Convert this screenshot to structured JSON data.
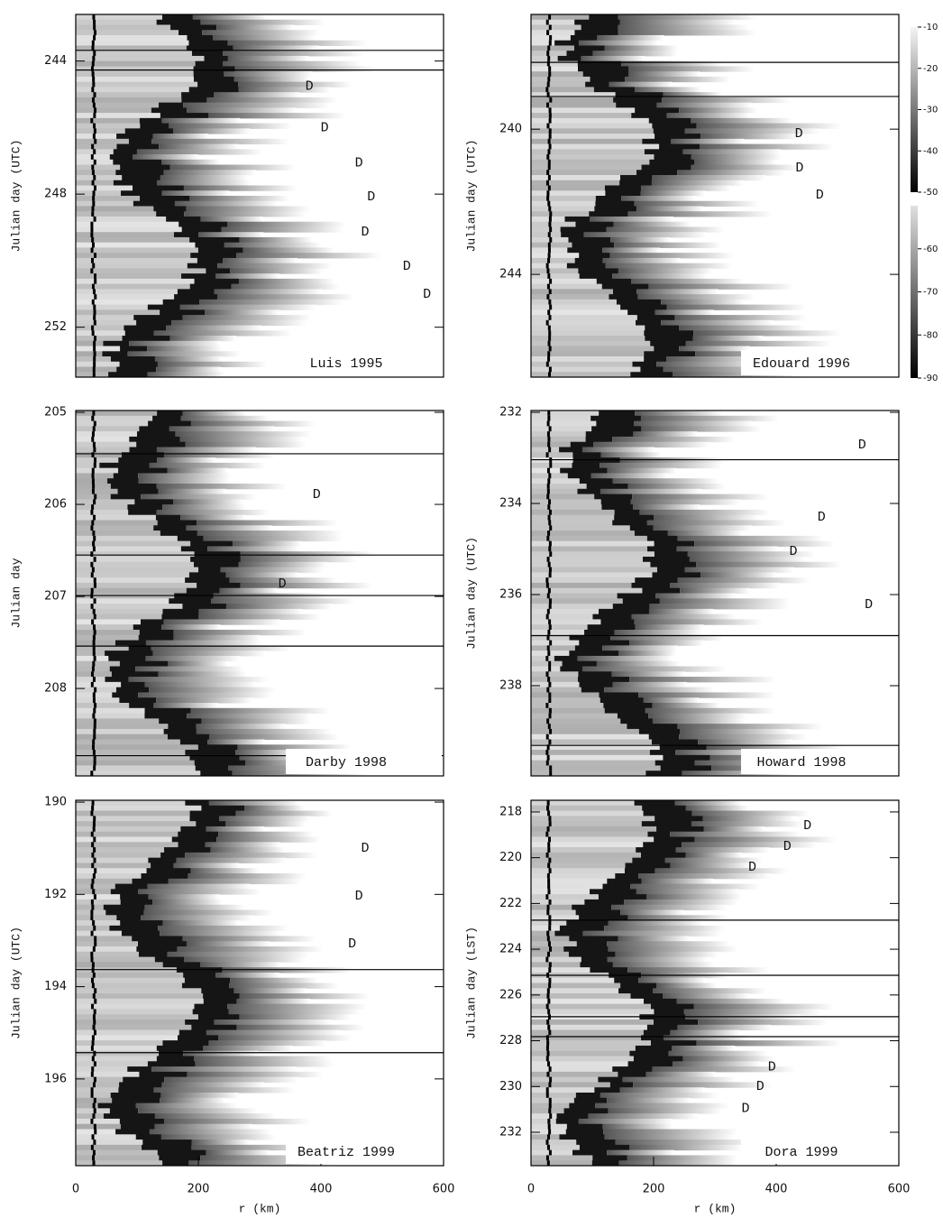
{
  "chart_data": [
    {
      "type": "hovmoller",
      "panel_label": "Luis 1995",
      "ylabel": "Julian day (UTC)",
      "xlim": [
        0,
        600
      ],
      "ylim": [
        242.6,
        253.5
      ],
      "yticks": [
        244,
        248,
        252
      ],
      "hlines": [
        243.68,
        244.27
      ],
      "annotations": [
        {
          "text": "D",
          "x": 381,
          "y": 244.76
        },
        {
          "text": "D",
          "x": 406,
          "y": 246.0
        },
        {
          "text": "D",
          "x": 462,
          "y": 247.06
        },
        {
          "text": "D",
          "x": 482,
          "y": 248.08
        },
        {
          "text": "D",
          "x": 472,
          "y": 249.14
        },
        {
          "text": "D",
          "x": 540,
          "y": 250.17
        },
        {
          "text": "D",
          "x": 573,
          "y": 251.01
        }
      ]
    },
    {
      "type": "hovmoller",
      "panel_label": "Edouard 1996",
      "ylabel": "Julian day (UTC)",
      "xlim": [
        0,
        600
      ],
      "ylim": [
        236.84,
        246.83
      ],
      "yticks": [
        240,
        244
      ],
      "hlines": [
        238.16,
        239.1
      ],
      "annotations": [
        {
          "text": "D",
          "x": 437,
          "y": 240.12
        },
        {
          "text": "D",
          "x": 438,
          "y": 241.07
        },
        {
          "text": "D",
          "x": 471,
          "y": 241.81
        }
      ],
      "colorbar": {
        "ticks": [
          -10,
          -20,
          -30,
          -40,
          -50,
          -60,
          -70,
          -80,
          -90
        ]
      }
    },
    {
      "type": "hovmoller",
      "panel_label": "Darby 1998",
      "ylabel": "Julian day",
      "xlim": [
        0,
        600
      ],
      "ylim": [
        204.98,
        208.95
      ],
      "yticks": [
        205,
        206,
        207,
        208
      ],
      "hlines": [
        205.45,
        206.55,
        206.99,
        207.54,
        208.73
      ],
      "annotations": [
        {
          "text": "D",
          "x": 393,
          "y": 205.89
        },
        {
          "text": "D",
          "x": 337,
          "y": 206.86
        }
      ]
    },
    {
      "type": "hovmoller",
      "panel_label": "Howard 1998",
      "ylabel": "Julian day (UTC)",
      "xlim": [
        0,
        600
      ],
      "ylim": [
        231.96,
        239.98
      ],
      "yticks": [
        232,
        234,
        236,
        238
      ],
      "hlines": [
        233.04,
        236.9,
        239.31
      ],
      "annotations": [
        {
          "text": "D",
          "x": 540,
          "y": 232.71
        },
        {
          "text": "D",
          "x": 474,
          "y": 234.3
        },
        {
          "text": "D",
          "x": 428,
          "y": 235.05
        },
        {
          "text": "D",
          "x": 551,
          "y": 236.22
        }
      ]
    },
    {
      "type": "hovmoller",
      "panel_label": "Beatriz 1999",
      "ylabel": "Julian day (UTC)",
      "xlabel": "r (km)",
      "xlim": [
        0,
        600
      ],
      "xticks": [
        0,
        200,
        400,
        600
      ],
      "ylim": [
        189.96,
        197.88
      ],
      "yticks": [
        190,
        192,
        194,
        196
      ],
      "hlines": [
        193.63,
        195.43
      ],
      "annotations": [
        {
          "text": "D",
          "x": 472,
          "y": 191.0
        },
        {
          "text": "D",
          "x": 462,
          "y": 192.03
        },
        {
          "text": "D",
          "x": 451,
          "y": 193.07
        }
      ]
    },
    {
      "type": "hovmoller",
      "panel_label": "Dora 1999",
      "ylabel": "Julian day (LST)",
      "xlabel": "r (km)",
      "xlim": [
        0,
        600
      ],
      "xticks": [
        0,
        200,
        400,
        600
      ],
      "ylim": [
        217.49,
        233.46
      ],
      "yticks": [
        218,
        220,
        222,
        224,
        226,
        228,
        230,
        232
      ],
      "hlines": [
        222.73,
        225.14,
        226.95,
        227.82
      ],
      "annotations": [
        {
          "text": "D",
          "x": 451,
          "y": 218.59
        },
        {
          "text": "D",
          "x": 418,
          "y": 219.5
        },
        {
          "text": "D",
          "x": 361,
          "y": 220.4
        },
        {
          "text": "D",
          "x": 393,
          "y": 229.15
        },
        {
          "text": "D",
          "x": 374,
          "y": 230.0
        },
        {
          "text": "D",
          "x": 350,
          "y": 230.96
        }
      ]
    }
  ]
}
